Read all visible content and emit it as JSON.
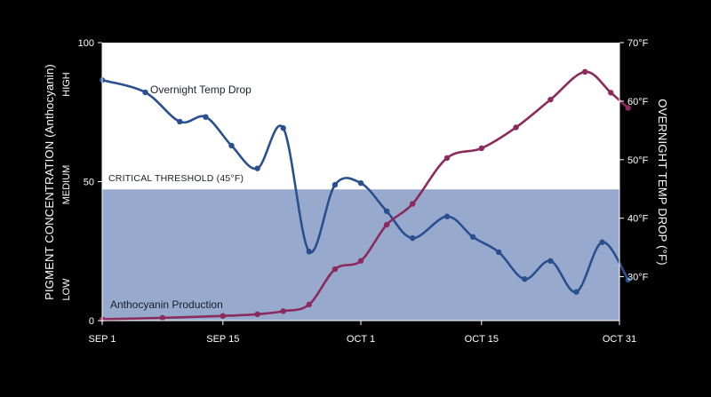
{
  "chart_data": {
    "type": "line",
    "x_ticks": [
      "SEP 1",
      "SEP 15",
      "OCT 1",
      "OCT 15",
      "OCT 31"
    ],
    "left_axis": {
      "title": "PIGMENT CONCENTRATION (Anthocyanin)",
      "range": [
        0,
        100
      ],
      "ticks": [
        "0",
        "50",
        "100"
      ],
      "levels": [
        "LOW",
        "MEDIUM",
        "HIGH"
      ]
    },
    "right_axis": {
      "title": "OVERNIGHT TEMP DROP (°F)",
      "range": [
        22.5,
        70
      ],
      "ticks": [
        "30°F",
        "40°F",
        "50°F",
        "60°F",
        "70°F"
      ]
    },
    "threshold": {
      "label": "CRITICAL THRESHOLD (45°F)",
      "value_f": 45
    },
    "series": [
      {
        "name": "Overnight Temp Drop",
        "axis": "right",
        "color": "#2a4f8f",
        "x": [
          "2024-09-01",
          "2024-09-06",
          "2024-09-10",
          "2024-09-13",
          "2024-09-16",
          "2024-09-19",
          "2024-09-22",
          "2024-09-25",
          "2024-09-28",
          "2024-10-01",
          "2024-10-04",
          "2024-10-07",
          "2024-10-11",
          "2024-10-14",
          "2024-10-17",
          "2024-10-20",
          "2024-10-23",
          "2024-10-26",
          "2024-10-29",
          "2024-11-01"
        ],
        "y": [
          63.6,
          61.5,
          56.5,
          57.3,
          52.4,
          48.5,
          55.4,
          34.3,
          45.7,
          46.0,
          41.2,
          36.6,
          40.3,
          36.8,
          34.2,
          29.6,
          32.7,
          27.4,
          35.9,
          29.5
        ]
      },
      {
        "name": "Anthocyanin Production",
        "axis": "left",
        "color": "#8b2a5c",
        "x": [
          "2024-09-01",
          "2024-09-08",
          "2024-09-15",
          "2024-09-19",
          "2024-09-22",
          "2024-09-25",
          "2024-09-28",
          "2024-10-01",
          "2024-10-04",
          "2024-10-07",
          "2024-10-11",
          "2024-10-15",
          "2024-10-19",
          "2024-10-23",
          "2024-10-27",
          "2024-10-30",
          "2024-11-01"
        ],
        "y": [
          0.5,
          1,
          1.7,
          2.3,
          3.4,
          5.8,
          18.5,
          21.5,
          34.5,
          42,
          58.5,
          62,
          69.5,
          79.5,
          89.5,
          82,
          76.5
        ]
      }
    ],
    "annotations": [
      "Overnight Temp Drop",
      "Anthocyanin Production"
    ],
    "grid": false
  }
}
